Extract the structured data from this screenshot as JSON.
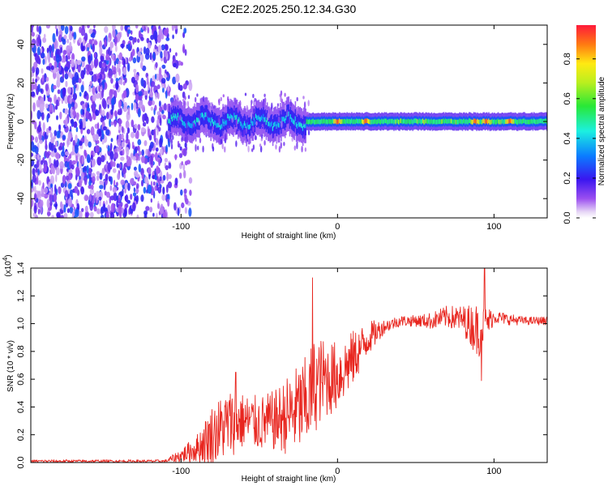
{
  "title": "C2E2.2025.250.12.34.G30",
  "chart_data": [
    {
      "type": "heatmap",
      "description_label": "spectrogram",
      "xlabel": "Height of straight line (km)",
      "ylabel": "Frequency (Hz)",
      "xlim": [
        -196,
        134
      ],
      "ylim": [
        -50,
        50
      ],
      "x_ticks": [
        -100,
        0,
        100
      ],
      "x_tick_labels": [
        "-100",
        "0",
        "100"
      ],
      "y_ticks": [
        40,
        20,
        0,
        -20,
        -40
      ],
      "y_tick_labels": [
        "40",
        "20",
        "0",
        "-20",
        "-40"
      ],
      "colorbar": {
        "label": "Normalized spectral amplitude",
        "range": [
          0.0,
          0.97
        ],
        "ticks": [
          0.0,
          0.2,
          0.4,
          0.6,
          0.8
        ],
        "tick_labels": [
          "0.0",
          "0.2",
          "0.4",
          "0.6",
          "0.8"
        ]
      },
      "features": {
        "noise_region_x": [
          -196,
          -98
        ],
        "noise_level": 0.25,
        "signal_start_x": -108,
        "signal_center_freq": 0,
        "peak_amplitude_x": [
          0,
          18,
          88,
          95,
          110
        ],
        "peak_amplitude": 0.95
      }
    },
    {
      "type": "line",
      "xlabel": "Height of straight line (km)",
      "ylabel": "SNR (10 * v/v)",
      "y_multiplier": "(x10",
      "y_multiplier_exp": "4",
      "y_multiplier_close": ")",
      "xlim": [
        -196,
        134
      ],
      "ylim": [
        0.0,
        1.4
      ],
      "x_ticks": [
        -100,
        0,
        100
      ],
      "x_tick_labels": [
        "-100",
        "0",
        "100"
      ],
      "y_ticks": [
        0.0,
        0.2,
        0.4,
        0.6,
        0.8,
        1.0,
        1.2,
        1.4
      ],
      "y_tick_labels": [
        "0.0",
        "0.2",
        "0.4",
        "0.6",
        "0.8",
        "1.0",
        "1.2",
        "1.4"
      ],
      "series": [
        {
          "name": "SNR",
          "color": "#e8261f",
          "keypoints_x": [
            -196,
            -110,
            -100,
            -90,
            -80,
            -70,
            -60,
            -50,
            -40,
            -30,
            -20,
            -15,
            -10,
            0,
            10,
            20,
            30,
            40,
            50,
            60,
            70,
            80,
            90,
            100,
            110,
            120,
            134
          ],
          "keypoints_y": [
            0.01,
            0.01,
            0.05,
            0.1,
            0.2,
            0.28,
            0.3,
            0.28,
            0.3,
            0.35,
            0.42,
            0.55,
            0.6,
            0.62,
            0.75,
            0.9,
            0.98,
            1.02,
            1.02,
            1.02,
            1.05,
            1.03,
            0.95,
            1.05,
            1.03,
            1.02,
            1.02
          ],
          "noise_amplitude": [
            0.01,
            0.01,
            0.05,
            0.1,
            0.22,
            0.25,
            0.2,
            0.2,
            0.22,
            0.3,
            0.35,
            0.35,
            0.3,
            0.25,
            0.2,
            0.12,
            0.05,
            0.04,
            0.04,
            0.06,
            0.08,
            0.1,
            0.2,
            0.05,
            0.04,
            0.03,
            0.03
          ],
          "spikes": [
            {
              "x": -65,
              "y": 0.65
            },
            {
              "x": -16,
              "y": 1.33
            },
            {
              "x": 50,
              "y": 1.05
            },
            {
              "x": 94,
              "y": 1.4
            },
            {
              "x": 92,
              "y": 0.59
            }
          ]
        }
      ]
    }
  ]
}
